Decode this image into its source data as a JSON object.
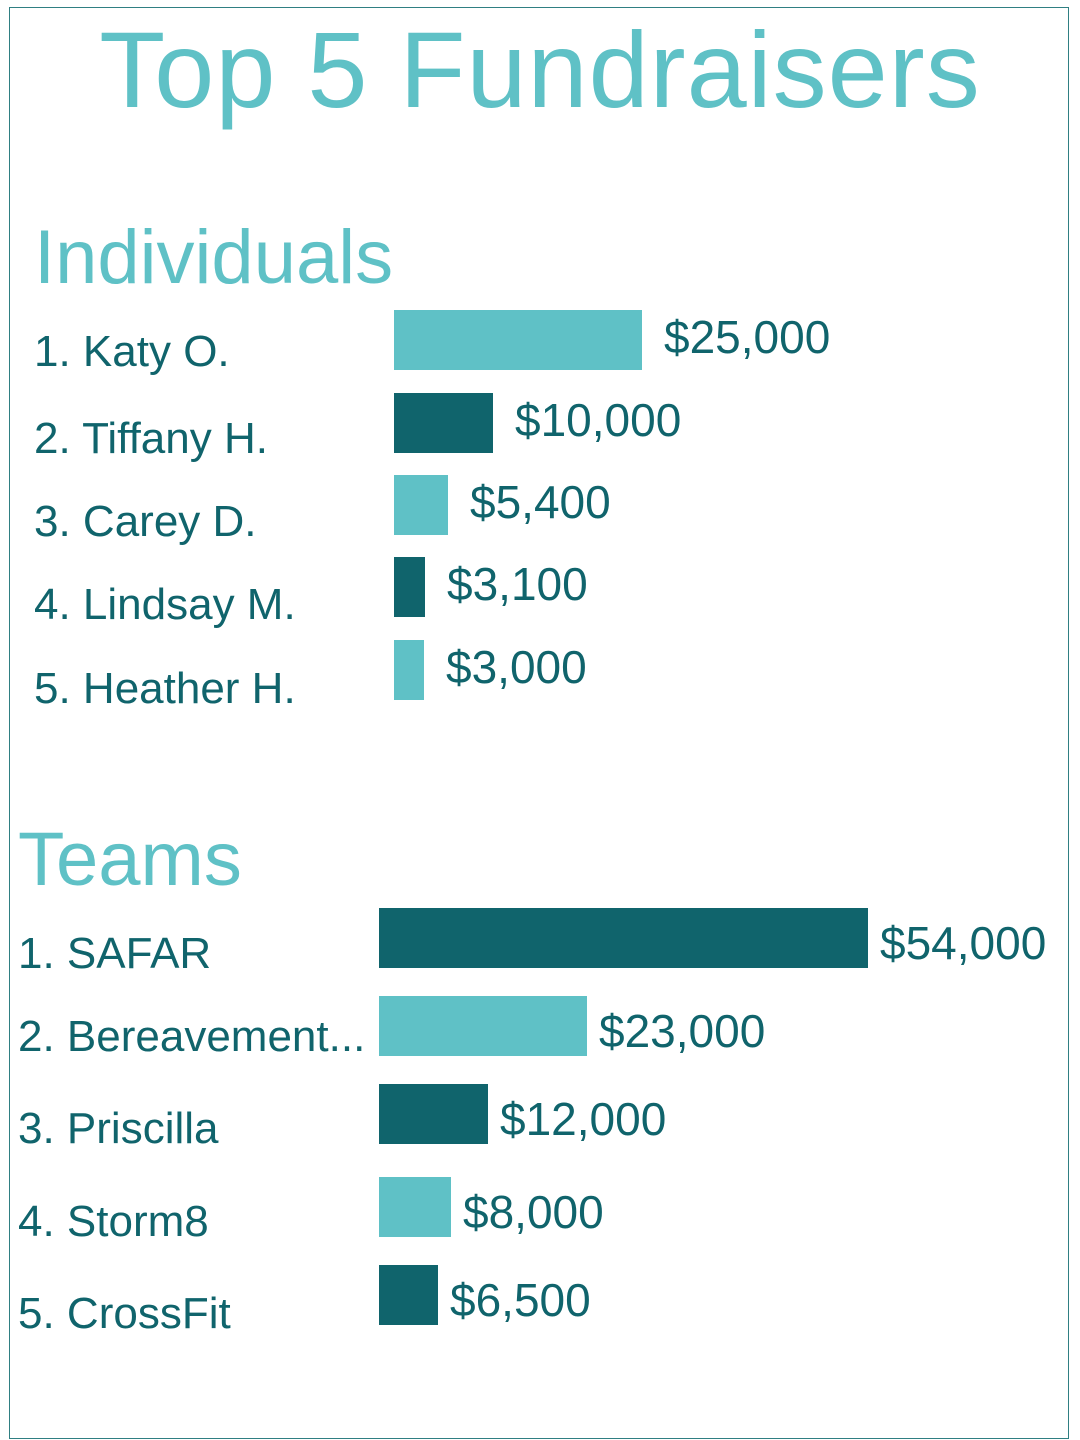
{
  "title": "Top 5 Fundraisers",
  "colors": {
    "light": "#5fc1c6",
    "dark": "#10646c",
    "border": "#2f7f82"
  },
  "chart_data": [
    {
      "type": "bar",
      "orientation": "horizontal",
      "title": "Individuals",
      "categories": [
        "1. Katy O.",
        "2. Tiffany H.",
        "3. Carey D.",
        "4. Lindsay M.",
        "5. Heather H."
      ],
      "values": [
        25000,
        10000,
        5400,
        3100,
        3000
      ],
      "value_labels": [
        "$25,000",
        "$10,000",
        "$5,400",
        "$3,100",
        "$3,000"
      ],
      "bar_colors": [
        "light",
        "dark",
        "light",
        "dark",
        "light"
      ],
      "xlim": [
        0,
        54000
      ],
      "grid": false,
      "legend": "none"
    },
    {
      "type": "bar",
      "orientation": "horizontal",
      "title": "Teams",
      "categories": [
        "1. SAFAR",
        "2. Bereavement...",
        "3. Priscilla",
        "4. Storm8",
        "5. CrossFit"
      ],
      "values": [
        54000,
        23000,
        12000,
        8000,
        6500
      ],
      "value_labels": [
        "$54,000",
        "$23,000",
        "$12,000",
        "$8,000",
        "$6,500"
      ],
      "bar_colors": [
        "dark",
        "light",
        "dark",
        "light",
        "dark"
      ],
      "xlim": [
        0,
        54000
      ],
      "grid": false,
      "legend": "none"
    }
  ]
}
